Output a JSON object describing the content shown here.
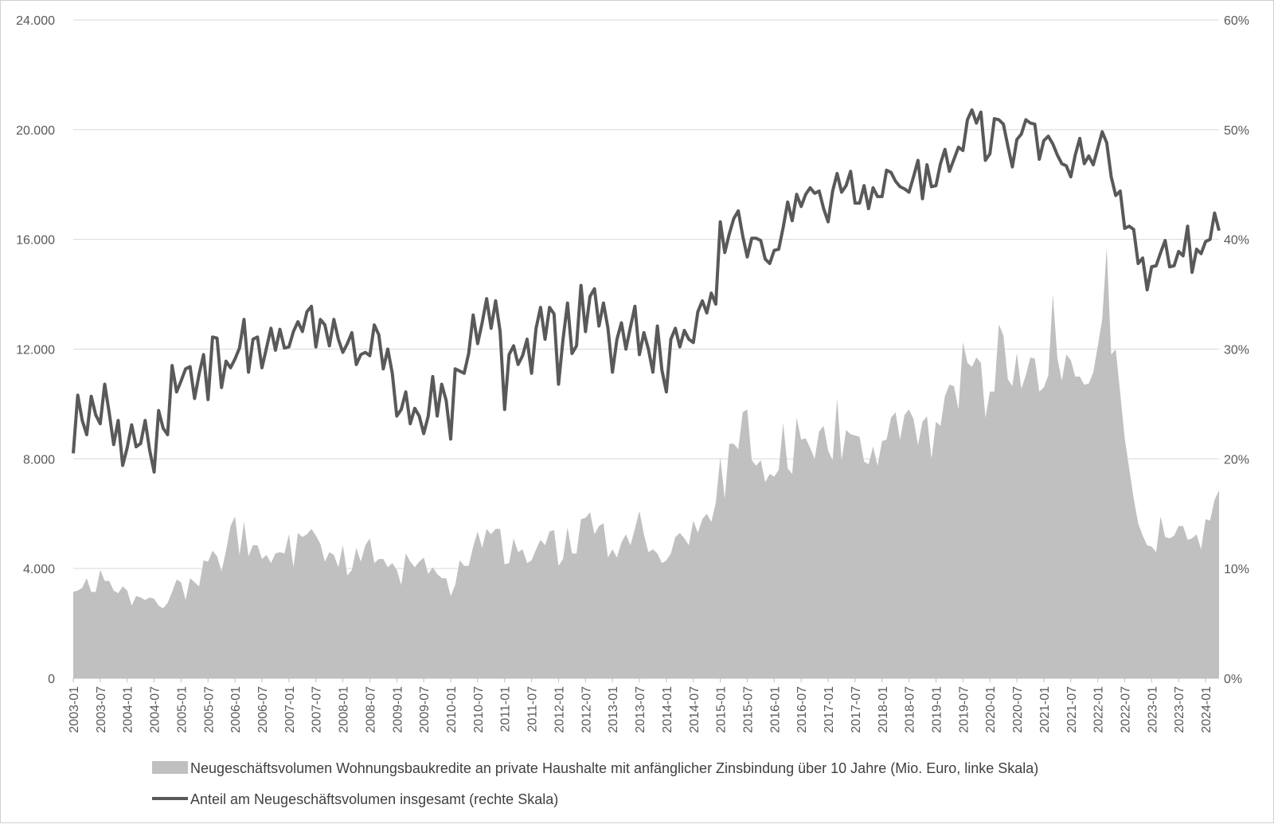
{
  "chart_data": {
    "type": "area+line",
    "title": "",
    "xlabel": "",
    "ylabel_left": "",
    "ylabel_right": "",
    "y_left_range": [
      0,
      24000
    ],
    "y_right_range": [
      0,
      60
    ],
    "y_left_ticks": [
      "0",
      "4.000",
      "8.000",
      "12.000",
      "16.000",
      "20.000",
      "24.000"
    ],
    "y_right_ticks": [
      "0%",
      "10%",
      "20%",
      "30%",
      "40%",
      "50%",
      "60%"
    ],
    "x_start": "2003-01",
    "x_end": "2024-05",
    "x_tick_labels": [
      "2003-01",
      "2003-07",
      "2004-01",
      "2004-07",
      "2005-01",
      "2005-07",
      "2006-01",
      "2006-07",
      "2007-01",
      "2007-07",
      "2008-01",
      "2008-07",
      "2009-01",
      "2009-07",
      "2010-01",
      "2010-07",
      "2011-01",
      "2011-07",
      "2012-01",
      "2012-07",
      "2013-01",
      "2013-07",
      "2014-01",
      "2014-07",
      "2015-01",
      "2015-07",
      "2016-01",
      "2016-07",
      "2017-01",
      "2017-07",
      "2018-01",
      "2018-07",
      "2019-01",
      "2019-07",
      "2020-01",
      "2020-07",
      "2021-01",
      "2021-07",
      "2022-01",
      "2022-07",
      "2023-01",
      "2023-07",
      "2024-01"
    ],
    "grid": "horizontal",
    "legend_position": "bottom",
    "colors": {
      "area": "#c0c0c0",
      "line": "#595959",
      "grid": "#d9d9d9",
      "axis": "#bfbfbf"
    },
    "series": [
      {
        "name": "Neugeschäftsvolumen Wohnungsbaukredite an private Haushalte mit anfänglicher Zinsbindung über 10 Jahre (Mio. Euro, linke Skala)",
        "type": "area",
        "axis": "left",
        "values": [
          3150,
          3200,
          3300,
          3650,
          3150,
          3150,
          3950,
          3550,
          3550,
          3200,
          3100,
          3350,
          3200,
          2650,
          3000,
          2950,
          2850,
          2950,
          2900,
          2650,
          2550,
          2750,
          3150,
          3600,
          3500,
          2850,
          3650,
          3500,
          3350,
          4300,
          4250,
          4650,
          4450,
          3900,
          4650,
          5550,
          5900,
          4500,
          5700,
          4450,
          4850,
          4850,
          4350,
          4500,
          4200,
          4550,
          4600,
          4550,
          5250,
          4050,
          5300,
          5150,
          5250,
          5450,
          5200,
          4900,
          4250,
          4600,
          4500,
          4050,
          4850,
          3750,
          3950,
          4750,
          4250,
          4850,
          5100,
          4200,
          4350,
          4350,
          4050,
          4200,
          3950,
          3400,
          4550,
          4250,
          4050,
          4250,
          4400,
          3800,
          4050,
          3800,
          3650,
          3650,
          3000,
          3400,
          4300,
          4100,
          4100,
          4800,
          5350,
          4750,
          5450,
          5250,
          5450,
          5450,
          4150,
          4200,
          5100,
          4600,
          4700,
          4200,
          4300,
          4700,
          5050,
          4850,
          5350,
          5400,
          4100,
          4350,
          5500,
          4550,
          4550,
          5800,
          5850,
          6050,
          5250,
          5550,
          5650,
          4400,
          4700,
          4400,
          4950,
          5250,
          4850,
          5450,
          6100,
          5250,
          4600,
          4700,
          4550,
          4200,
          4300,
          4550,
          5150,
          5300,
          5100,
          4850,
          5750,
          5300,
          5800,
          6000,
          5700,
          6400,
          8050,
          6550,
          8550,
          8550,
          8350,
          9700,
          9800,
          7950,
          7750,
          7950,
          7150,
          7450,
          7350,
          7600,
          9300,
          7650,
          7450,
          9500,
          8700,
          8750,
          8400,
          8000,
          9000,
          9200,
          8300,
          7950,
          10200,
          7950,
          9050,
          8900,
          8850,
          8800,
          7900,
          7800,
          8450,
          7750,
          8650,
          8700,
          9500,
          9700,
          8700,
          9600,
          9800,
          9450,
          8500,
          9350,
          9550,
          8000,
          9350,
          9200,
          10300,
          10700,
          10650,
          9800,
          12250,
          11500,
          11350,
          11700,
          11500,
          9500,
          10450,
          10450,
          12900,
          12500,
          10900,
          10650,
          11850,
          10550,
          11050,
          11700,
          11650,
          10450,
          10600,
          11050,
          14000,
          11700,
          10850,
          11800,
          11600,
          11000,
          11000,
          10700,
          10750,
          11150,
          12100,
          13100,
          15700,
          11800,
          12000,
          10400,
          8750,
          7650,
          6550,
          5650,
          5200,
          4850,
          4800,
          4600,
          5900,
          5150,
          5100,
          5200,
          5550,
          5550,
          5050,
          5100,
          5250,
          4700,
          5800,
          5750,
          6500,
          6850
        ]
      },
      {
        "name": "Anteil am Neugeschäftsvolumen insgesamt (rechte Skala)",
        "type": "line",
        "axis": "right",
        "values": [
          20.5,
          25.8,
          23.5,
          22.2,
          25.7,
          24.0,
          23.2,
          26.8,
          24.2,
          21.3,
          23.5,
          19.4,
          21.0,
          23.1,
          21.1,
          21.4,
          23.5,
          20.8,
          18.8,
          24.4,
          22.8,
          22.2,
          28.5,
          26.1,
          27.1,
          28.2,
          28.4,
          25.5,
          27.7,
          29.5,
          25.4,
          31.1,
          31.0,
          26.5,
          28.9,
          28.3,
          29.1,
          30.1,
          32.7,
          27.9,
          30.9,
          31.1,
          28.3,
          30.1,
          31.9,
          29.9,
          31.8,
          30.1,
          30.2,
          31.6,
          32.5,
          31.6,
          33.4,
          33.9,
          30.2,
          32.7,
          32.2,
          30.3,
          32.7,
          30.9,
          29.7,
          30.5,
          31.5,
          28.6,
          29.5,
          29.7,
          29.4,
          32.2,
          31.3,
          28.2,
          30.0,
          27.8,
          23.9,
          24.5,
          26.1,
          23.2,
          24.6,
          23.9,
          22.3,
          23.9,
          27.5,
          23.9,
          26.8,
          25.3,
          21.8,
          28.2,
          28.0,
          27.8,
          29.6,
          33.1,
          30.5,
          32.4,
          34.6,
          31.9,
          34.4,
          31.6,
          24.5,
          29.5,
          30.3,
          28.6,
          29.4,
          30.9,
          27.8,
          31.9,
          33.8,
          30.9,
          33.8,
          33.2,
          26.8,
          30.9,
          34.2,
          29.6,
          30.3,
          35.8,
          31.6,
          34.8,
          35.5,
          32.1,
          34.2,
          31.9,
          27.9,
          30.9,
          32.4,
          30.0,
          32.0,
          33.9,
          29.5,
          31.5,
          30.0,
          27.9,
          32.1,
          28.1,
          26.1,
          30.9,
          31.9,
          30.2,
          31.7,
          30.9,
          30.6,
          33.4,
          34.4,
          33.3,
          35.1,
          34.1,
          41.6,
          38.8,
          40.5,
          41.9,
          42.6,
          40.3,
          38.4,
          40.1,
          40.1,
          39.9,
          38.2,
          37.8,
          39.0,
          39.1,
          41.1,
          43.4,
          41.7,
          44.1,
          43.0,
          44.1,
          44.7,
          44.2,
          44.4,
          42.8,
          41.6,
          44.4,
          46.0,
          44.3,
          44.9,
          46.2,
          43.3,
          43.3,
          44.9,
          42.8,
          44.7,
          43.9,
          43.9,
          46.3,
          46.1,
          45.3,
          44.8,
          44.6,
          44.3,
          45.7,
          47.2,
          43.7,
          46.8,
          44.8,
          44.9,
          46.9,
          48.2,
          46.2,
          47.3,
          48.4,
          48.1,
          50.9,
          51.8,
          50.6,
          51.6,
          47.2,
          47.8,
          51.0,
          50.9,
          50.5,
          48.5,
          46.6,
          49.1,
          49.6,
          50.9,
          50.6,
          50.5,
          47.3,
          49.0,
          49.4,
          48.7,
          47.7,
          46.9,
          46.7,
          45.7,
          47.7,
          49.2,
          46.9,
          47.6,
          46.8,
          48.3,
          49.8,
          48.8,
          45.7,
          44.0,
          44.4,
          41.0,
          41.2,
          40.9,
          37.8,
          38.3,
          35.4,
          37.5,
          37.6,
          38.8,
          39.9,
          37.5,
          37.6,
          38.9,
          38.5,
          41.2,
          37.0,
          39.1,
          38.7,
          39.8,
          40.0,
          42.4,
          40.8
        ]
      }
    ]
  }
}
